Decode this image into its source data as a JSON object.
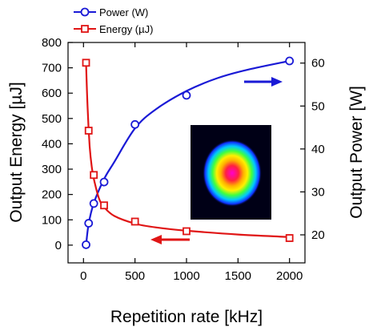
{
  "chart_data": {
    "type": "line",
    "xlabel": "Repetition rate [kHz]",
    "ylabel_left": "Output Energy [µJ]",
    "ylabel_right": "Output Power [W]",
    "xlim": [
      -150,
      2150
    ],
    "ylim_left": [
      -70,
      800
    ],
    "ylim_right": [
      13.47,
      64.8
    ],
    "x_ticks": [
      0,
      500,
      1000,
      1500,
      2000
    ],
    "y_left_ticks": [
      0,
      100,
      200,
      300,
      400,
      500,
      600,
      700,
      800
    ],
    "y_right_ticks": [
      20,
      30,
      40,
      50,
      60
    ],
    "grid": false,
    "legend_position": "top-left, above plot",
    "series": [
      {
        "name": "Power (W)",
        "axis": "right",
        "color": "#1a1ad6",
        "marker": "circle",
        "x": [
          25,
          50,
          100,
          200,
          500,
          1000,
          2000
        ],
        "y": [
          17.7,
          22.7,
          27.3,
          32.3,
          45.7,
          52.5,
          60.5
        ]
      },
      {
        "name": "Energy (µJ)",
        "axis": "left",
        "color": "#e01515",
        "marker": "square",
        "x": [
          25,
          50,
          100,
          200,
          500,
          1000,
          2000
        ],
        "y": [
          720,
          452,
          277,
          157,
          93,
          55,
          28
        ]
      }
    ],
    "fit_curves": [
      {
        "series": "Power (W)",
        "color": "#1a1ad6",
        "x": [
          25,
          50,
          100,
          200,
          300,
          500,
          700,
          1000,
          1300,
          1600,
          2000
        ],
        "y": [
          17.6,
          22.5,
          27.4,
          33.0,
          37.0,
          44.8,
          49.2,
          53.5,
          56.5,
          58.5,
          60.5
        ]
      },
      {
        "series": "Energy (µJ)",
        "color": "#e01515",
        "x": [
          25,
          40,
          60,
          80,
          100,
          150,
          200,
          300,
          500,
          700,
          1000,
          1500,
          2000
        ],
        "y": [
          720,
          540,
          390,
          310,
          262,
          185,
          150,
          115,
          85,
          70,
          57,
          42,
          32
        ]
      }
    ],
    "annotations": [
      {
        "type": "arrow",
        "direction": "right",
        "color": "#1a1ad6",
        "meaning": "Power curve refers to right axis"
      },
      {
        "type": "arrow",
        "direction": "left",
        "color": "#e01515",
        "meaning": "Energy curve refers to left axis"
      },
      {
        "type": "inset-image",
        "content": "beam profile"
      }
    ]
  }
}
